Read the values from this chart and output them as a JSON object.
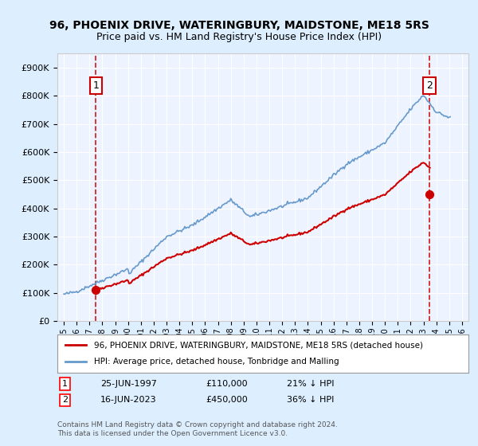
{
  "title": "96, PHOENIX DRIVE, WATERINGBURY, MAIDSTONE, ME18 5RS",
  "subtitle": "Price paid vs. HM Land Registry's House Price Index (HPI)",
  "hpi_label": "HPI: Average price, detached house, Tonbridge and Malling",
  "property_label": "96, PHOENIX DRIVE, WATERINGBURY, MAIDSTONE, ME18 5RS (detached house)",
  "transaction1_date": "25-JUN-1997",
  "transaction1_price": 110000,
  "transaction1_hpi": "21% ↓ HPI",
  "transaction2_date": "16-JUN-2023",
  "transaction2_price": 450000,
  "transaction2_hpi": "36% ↓ HPI",
  "transaction1_year": 1997.49,
  "transaction2_year": 2023.46,
  "footnote": "Contains HM Land Registry data © Crown copyright and database right 2024.\nThis data is licensed under the Open Government Licence v3.0.",
  "hpi_color": "#6699cc",
  "property_color": "#cc0000",
  "dashed_color": "#cc0000",
  "background_color": "#ddeeff",
  "plot_bg": "#eef4ff",
  "ylim": [
    0,
    950000
  ],
  "xlim_start": 1994.5,
  "xlim_end": 2026.5
}
